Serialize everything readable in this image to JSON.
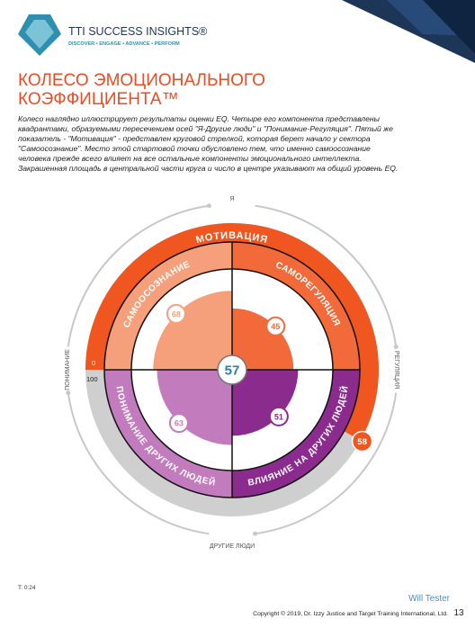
{
  "header": {
    "brand": "TTI SUCCESS INSIGHTS®",
    "tagline": "DISCOVER • ENGAGE • ADVANCE • PERFORM"
  },
  "title": [
    "КОЛЕСО ЭМОЦИОНАЛЬНОГО",
    "КОЭФФИЦИЕНТА™"
  ],
  "intro": "Колесо наглядно иллюстрирует результаты оценки EQ.  Четыре его компонента представлены квадрантами, образуемыми пересечением осей \"Я-Другие люди\" и \"Понимание-Регуляция\".  Пятый же показатель - \"Мотивация\" - представлен круговой стрелкой, которая берет начало у сектора \"Самоосознание\".  Место этой стартовой точки обусловлено тем, что именно самоосознание человека прежде всего влияет на все остальные компоненты эмоционального интеллекта. Закрашенная площадь в центральной части круга и число в центре указывают на общий уровень EQ.",
  "wheel": {
    "axes": {
      "top": "Я",
      "bottom": "ДРУГИЕ ЛЮДИ",
      "left": "ПОНИМАНИЕ",
      "right": "РЕГУЛЯЦИЯ"
    },
    "quadrants": [
      {
        "label": "САМООСОЗНАНИЕ",
        "value": 68,
        "color": "#f5a07a"
      },
      {
        "label": "САМОРЕГУЛЯЦИЯ",
        "value": 45,
        "color": "#f26a3a"
      },
      {
        "label": "ВЛИЯНИЕ НА ДРУГИХ ЛЮДЕЙ",
        "value": 51,
        "color": "#8c2b8e"
      },
      {
        "label": "ПОНИМАНИЕ ДРУГИХ ЛЮДЕЙ",
        "value": 63,
        "color": "#c27bbd"
      }
    ],
    "overall": 57,
    "motivation": {
      "label": "МОТИВАЦИЯ",
      "value": 58,
      "scale": [
        0,
        100
      ],
      "color": "#f0561f"
    }
  },
  "footer": {
    "code": "T: 0:24",
    "name": "Will Tester",
    "copyright": "Copyright © 2019, Dr. Izzy Justice and Target Training International, Ltd.",
    "page": "13"
  }
}
